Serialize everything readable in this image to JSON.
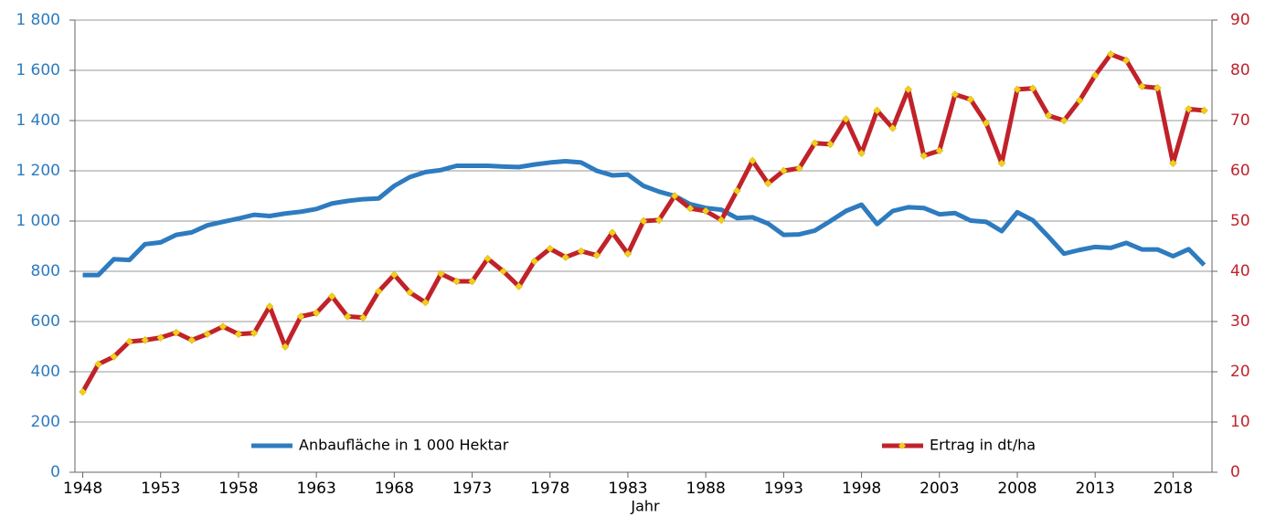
{
  "chart_data": {
    "type": "line",
    "x_label": "Jahr",
    "x": [
      1948,
      1949,
      1950,
      1951,
      1952,
      1953,
      1954,
      1955,
      1956,
      1957,
      1958,
      1959,
      1960,
      1961,
      1962,
      1963,
      1964,
      1965,
      1966,
      1967,
      1968,
      1969,
      1970,
      1971,
      1972,
      1973,
      1974,
      1975,
      1976,
      1977,
      1978,
      1979,
      1980,
      1981,
      1982,
      1983,
      1984,
      1985,
      1986,
      1987,
      1988,
      1989,
      1990,
      1991,
      1992,
      1993,
      1994,
      1995,
      1996,
      1997,
      1998,
      1999,
      2000,
      2001,
      2002,
      2003,
      2004,
      2005,
      2006,
      2007,
      2008,
      2009,
      2010,
      2011,
      2012,
      2013,
      2014,
      2015,
      2016,
      2017,
      2018,
      2019,
      2020
    ],
    "xlim": [
      1947.5,
      2020.5
    ],
    "xticks": [
      1948,
      1953,
      1958,
      1963,
      1968,
      1973,
      1978,
      1983,
      1988,
      1993,
      1998,
      2003,
      2008,
      2013,
      2018
    ],
    "ylim": [
      0,
      1800
    ],
    "yticks": [
      0,
      200,
      400,
      600,
      800,
      {
        "value": 1000,
        "label": "1 000"
      },
      {
        "value": 1200,
        "label": "1 200"
      },
      {
        "value": 1400,
        "label": "1 400"
      },
      {
        "value": 1600,
        "label": "1 600"
      },
      {
        "value": 1800,
        "label": "1 800"
      }
    ],
    "y2lim": [
      0,
      90
    ],
    "y2ticks": [
      0,
      10,
      20,
      30,
      40,
      50,
      60,
      70,
      80,
      90
    ],
    "grid": true,
    "series": [
      {
        "name": "Anbaufläche in 1 000 Hektar",
        "color": "#2e7bbf",
        "values": [
          785,
          785,
          848,
          845,
          908,
          915,
          945,
          955,
          983,
          997,
          1010,
          1025,
          1020,
          1030,
          1037,
          1048,
          1070,
          1080,
          1087,
          1090,
          1140,
          1175,
          1195,
          1203,
          1220,
          1220,
          1220,
          1217,
          1215,
          1225,
          1233,
          1238,
          1233,
          1200,
          1182,
          1185,
          1140,
          1117,
          1100,
          1067,
          1052,
          1045,
          1012,
          1015,
          990,
          945,
          947,
          962,
          1000,
          1040,
          1065,
          988,
          1040,
          1055,
          1052,
          1027,
          1032,
          1002,
          997,
          960,
          1035,
          1003,
          938,
          870,
          885,
          897,
          893,
          913,
          887,
          887,
          860,
          888,
          825
        ]
      },
      {
        "name": "Ertrag in dt/ha",
        "color": "#c1222a",
        "marker_color": "#f2cf1a",
        "axis": "y2",
        "values": [
          16,
          21.5,
          23,
          26,
          26.3,
          26.8,
          27.8,
          26.3,
          27.5,
          29,
          27.5,
          27.7,
          33,
          25,
          31,
          31.7,
          35,
          31,
          30.8,
          36,
          39.3,
          35.8,
          33.8,
          39.5,
          38,
          38,
          42.5,
          40,
          37,
          42,
          44.5,
          42.8,
          44,
          43.2,
          47.7,
          43.5,
          50,
          50.2,
          55,
          52.5,
          52,
          50.2,
          56,
          62,
          57.5,
          60,
          60.5,
          65.5,
          65.3,
          70.3,
          63.5,
          72,
          68.5,
          76.2,
          63,
          64,
          75.2,
          74.2,
          69.5,
          61.5,
          76.2,
          76.4,
          71,
          70,
          74,
          79,
          83.2,
          82,
          76.8,
          76.5,
          61.5,
          72.3,
          72
        ]
      }
    ]
  }
}
